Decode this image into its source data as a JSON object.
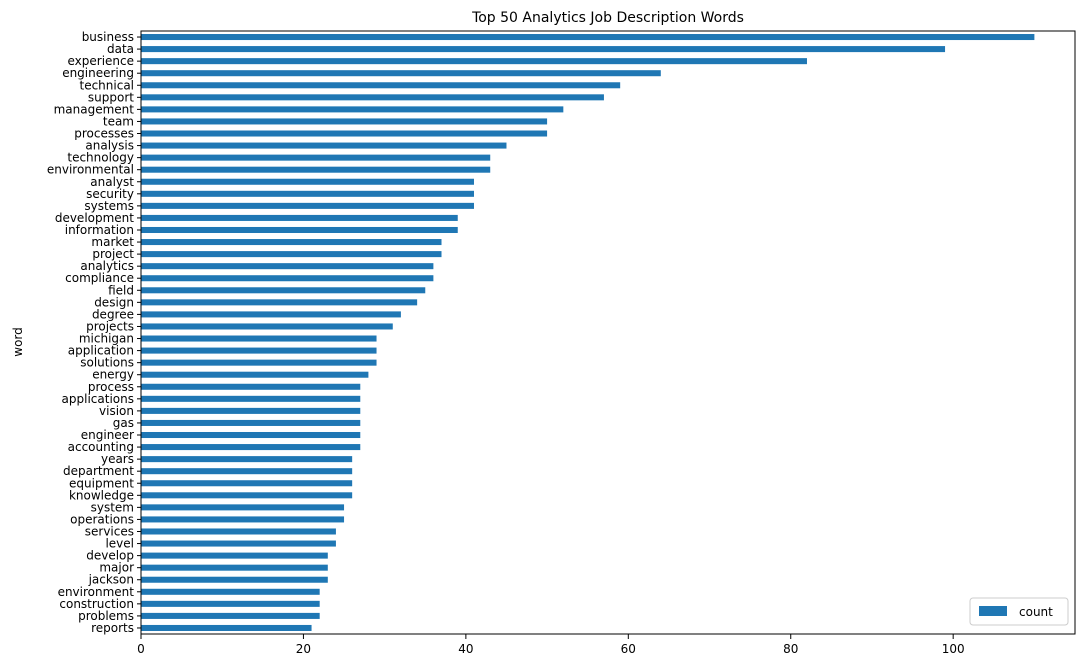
{
  "chart_data": {
    "type": "bar",
    "orientation": "horizontal",
    "title": "Top 50 Analytics Job Description Words",
    "ylabel": "word",
    "xlabel": "",
    "xlim": [
      0,
      115
    ],
    "x_ticks": [
      0,
      20,
      40,
      60,
      80,
      100
    ],
    "grid": false,
    "legend": {
      "position": "bottom-right",
      "entries": [
        "count"
      ]
    },
    "bar_color": "#1f77b4",
    "categories": [
      "business",
      "data",
      "experience",
      "engineering",
      "technical",
      "support",
      "management",
      "team",
      "processes",
      "analysis",
      "technology",
      "environmental",
      "analyst",
      "security",
      "systems",
      "development",
      "information",
      "market",
      "project",
      "analytics",
      "compliance",
      "field",
      "design",
      "degree",
      "projects",
      "michigan",
      "application",
      "solutions",
      "energy",
      "process",
      "applications",
      "vision",
      "gas",
      "engineer",
      "accounting",
      "years",
      "department",
      "equipment",
      "knowledge",
      "system",
      "operations",
      "services",
      "level",
      "develop",
      "major",
      "jackson",
      "environment",
      "construction",
      "problems",
      "reports"
    ],
    "series": [
      {
        "name": "count",
        "values": [
          110,
          99,
          82,
          64,
          59,
          57,
          52,
          50,
          50,
          45,
          43,
          43,
          41,
          41,
          41,
          39,
          39,
          37,
          37,
          36,
          36,
          35,
          34,
          32,
          31,
          29,
          29,
          29,
          28,
          27,
          27,
          27,
          27,
          27,
          27,
          26,
          26,
          26,
          26,
          25,
          25,
          24,
          24,
          23,
          23,
          23,
          22,
          22,
          22,
          21
        ]
      }
    ]
  }
}
